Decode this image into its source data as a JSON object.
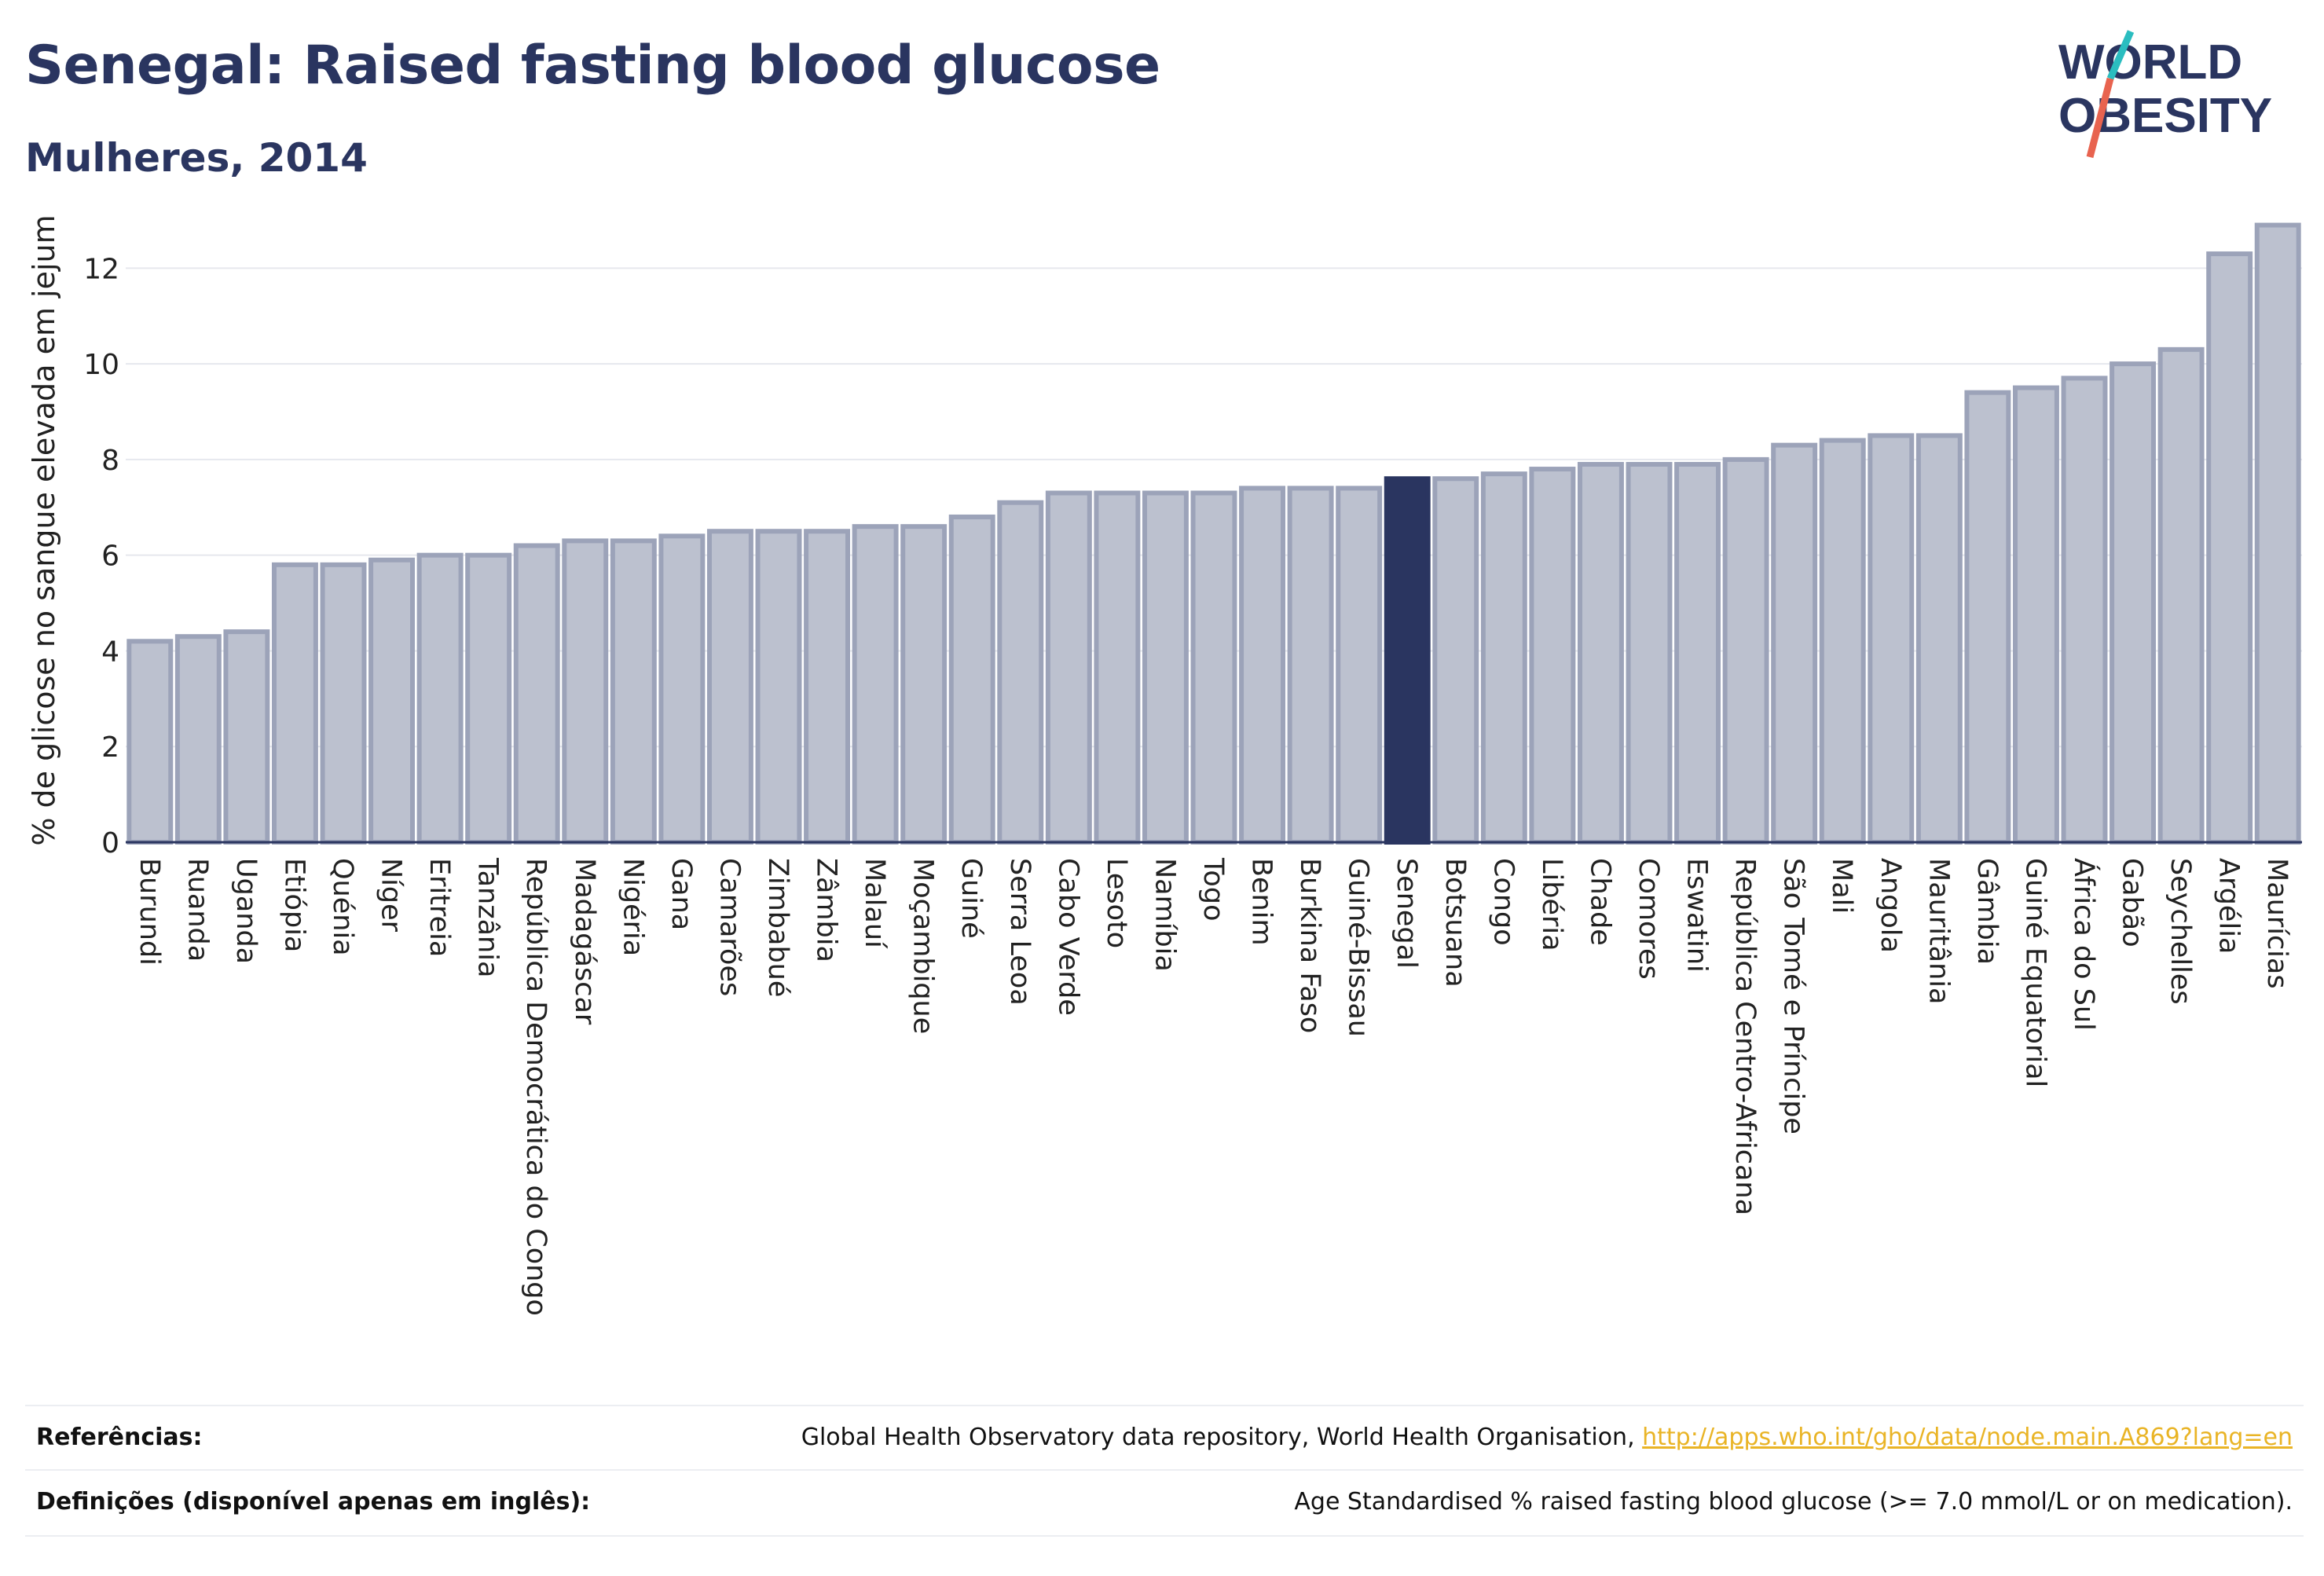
{
  "header": {
    "title": "Senegal: Raised fasting blood glucose",
    "subtitle": "Mulheres, 2014"
  },
  "logo": {
    "line1": "WORLD",
    "line2": "OBESITY",
    "accent_colors": [
      "#2bbdc0",
      "#e8634f"
    ]
  },
  "chart_data": {
    "type": "bar",
    "ylabel": "% de glicose no sangue elevada em jejum",
    "ylim": [
      0,
      13.5
    ],
    "yticks": [
      0,
      2,
      4,
      6,
      8,
      10,
      12
    ],
    "grid": true,
    "highlight": "Senegal",
    "colors": {
      "bar": "#bcc1cf",
      "bar_border": "#9ca3b9",
      "highlight": "#2a3560"
    },
    "categories": [
      "Burundi",
      "Ruanda",
      "Uganda",
      "Etiópia",
      "Quénia",
      "Níger",
      "Eritreia",
      "Tanzânia",
      "República Democrática do Congo",
      "Madagáscar",
      "Nigéria",
      "Gana",
      "Camarões",
      "Zimbabué",
      "Zâmbia",
      "Malauí",
      "Moçambique",
      "Guiné",
      "Serra Leoa",
      "Cabo Verde",
      "Lesoto",
      "Namíbia",
      "Togo",
      "Benim",
      "Burkina Faso",
      "Guiné-Bissau",
      "Senegal",
      "Botsuana",
      "Congo",
      "Libéria",
      "Chade",
      "Comores",
      "Eswatini",
      "República Centro-Africana",
      "São Tomé e Príncipe",
      "Mali",
      "Angola",
      "Mauritânia",
      "Gâmbia",
      "Guiné Equatorial",
      "África do Sul",
      "Gabão",
      "Seychelles",
      "Argélia",
      "Maurícias"
    ],
    "values": [
      4.2,
      4.3,
      4.4,
      5.8,
      5.8,
      5.9,
      6.0,
      6.0,
      6.2,
      6.3,
      6.3,
      6.4,
      6.5,
      6.5,
      6.5,
      6.6,
      6.6,
      6.8,
      7.1,
      7.3,
      7.3,
      7.3,
      7.3,
      7.4,
      7.4,
      7.4,
      7.6,
      7.6,
      7.7,
      7.8,
      7.9,
      7.9,
      7.9,
      8.0,
      8.3,
      8.4,
      8.5,
      8.5,
      9.4,
      9.5,
      9.7,
      10.0,
      10.3,
      12.3,
      12.9
    ]
  },
  "footer": {
    "references_label": "Referências:",
    "references_text": "Global Health Observatory data repository, World Health Organisation, ",
    "references_link": "http://apps.who.int/gho/data/node.main.A869?lang=en",
    "definitions_label": "Definições (disponível apenas em inglês):",
    "definitions_text": "Age Standardised % raised fasting blood glucose (>= 7.0 mmol/L or on medication)."
  }
}
